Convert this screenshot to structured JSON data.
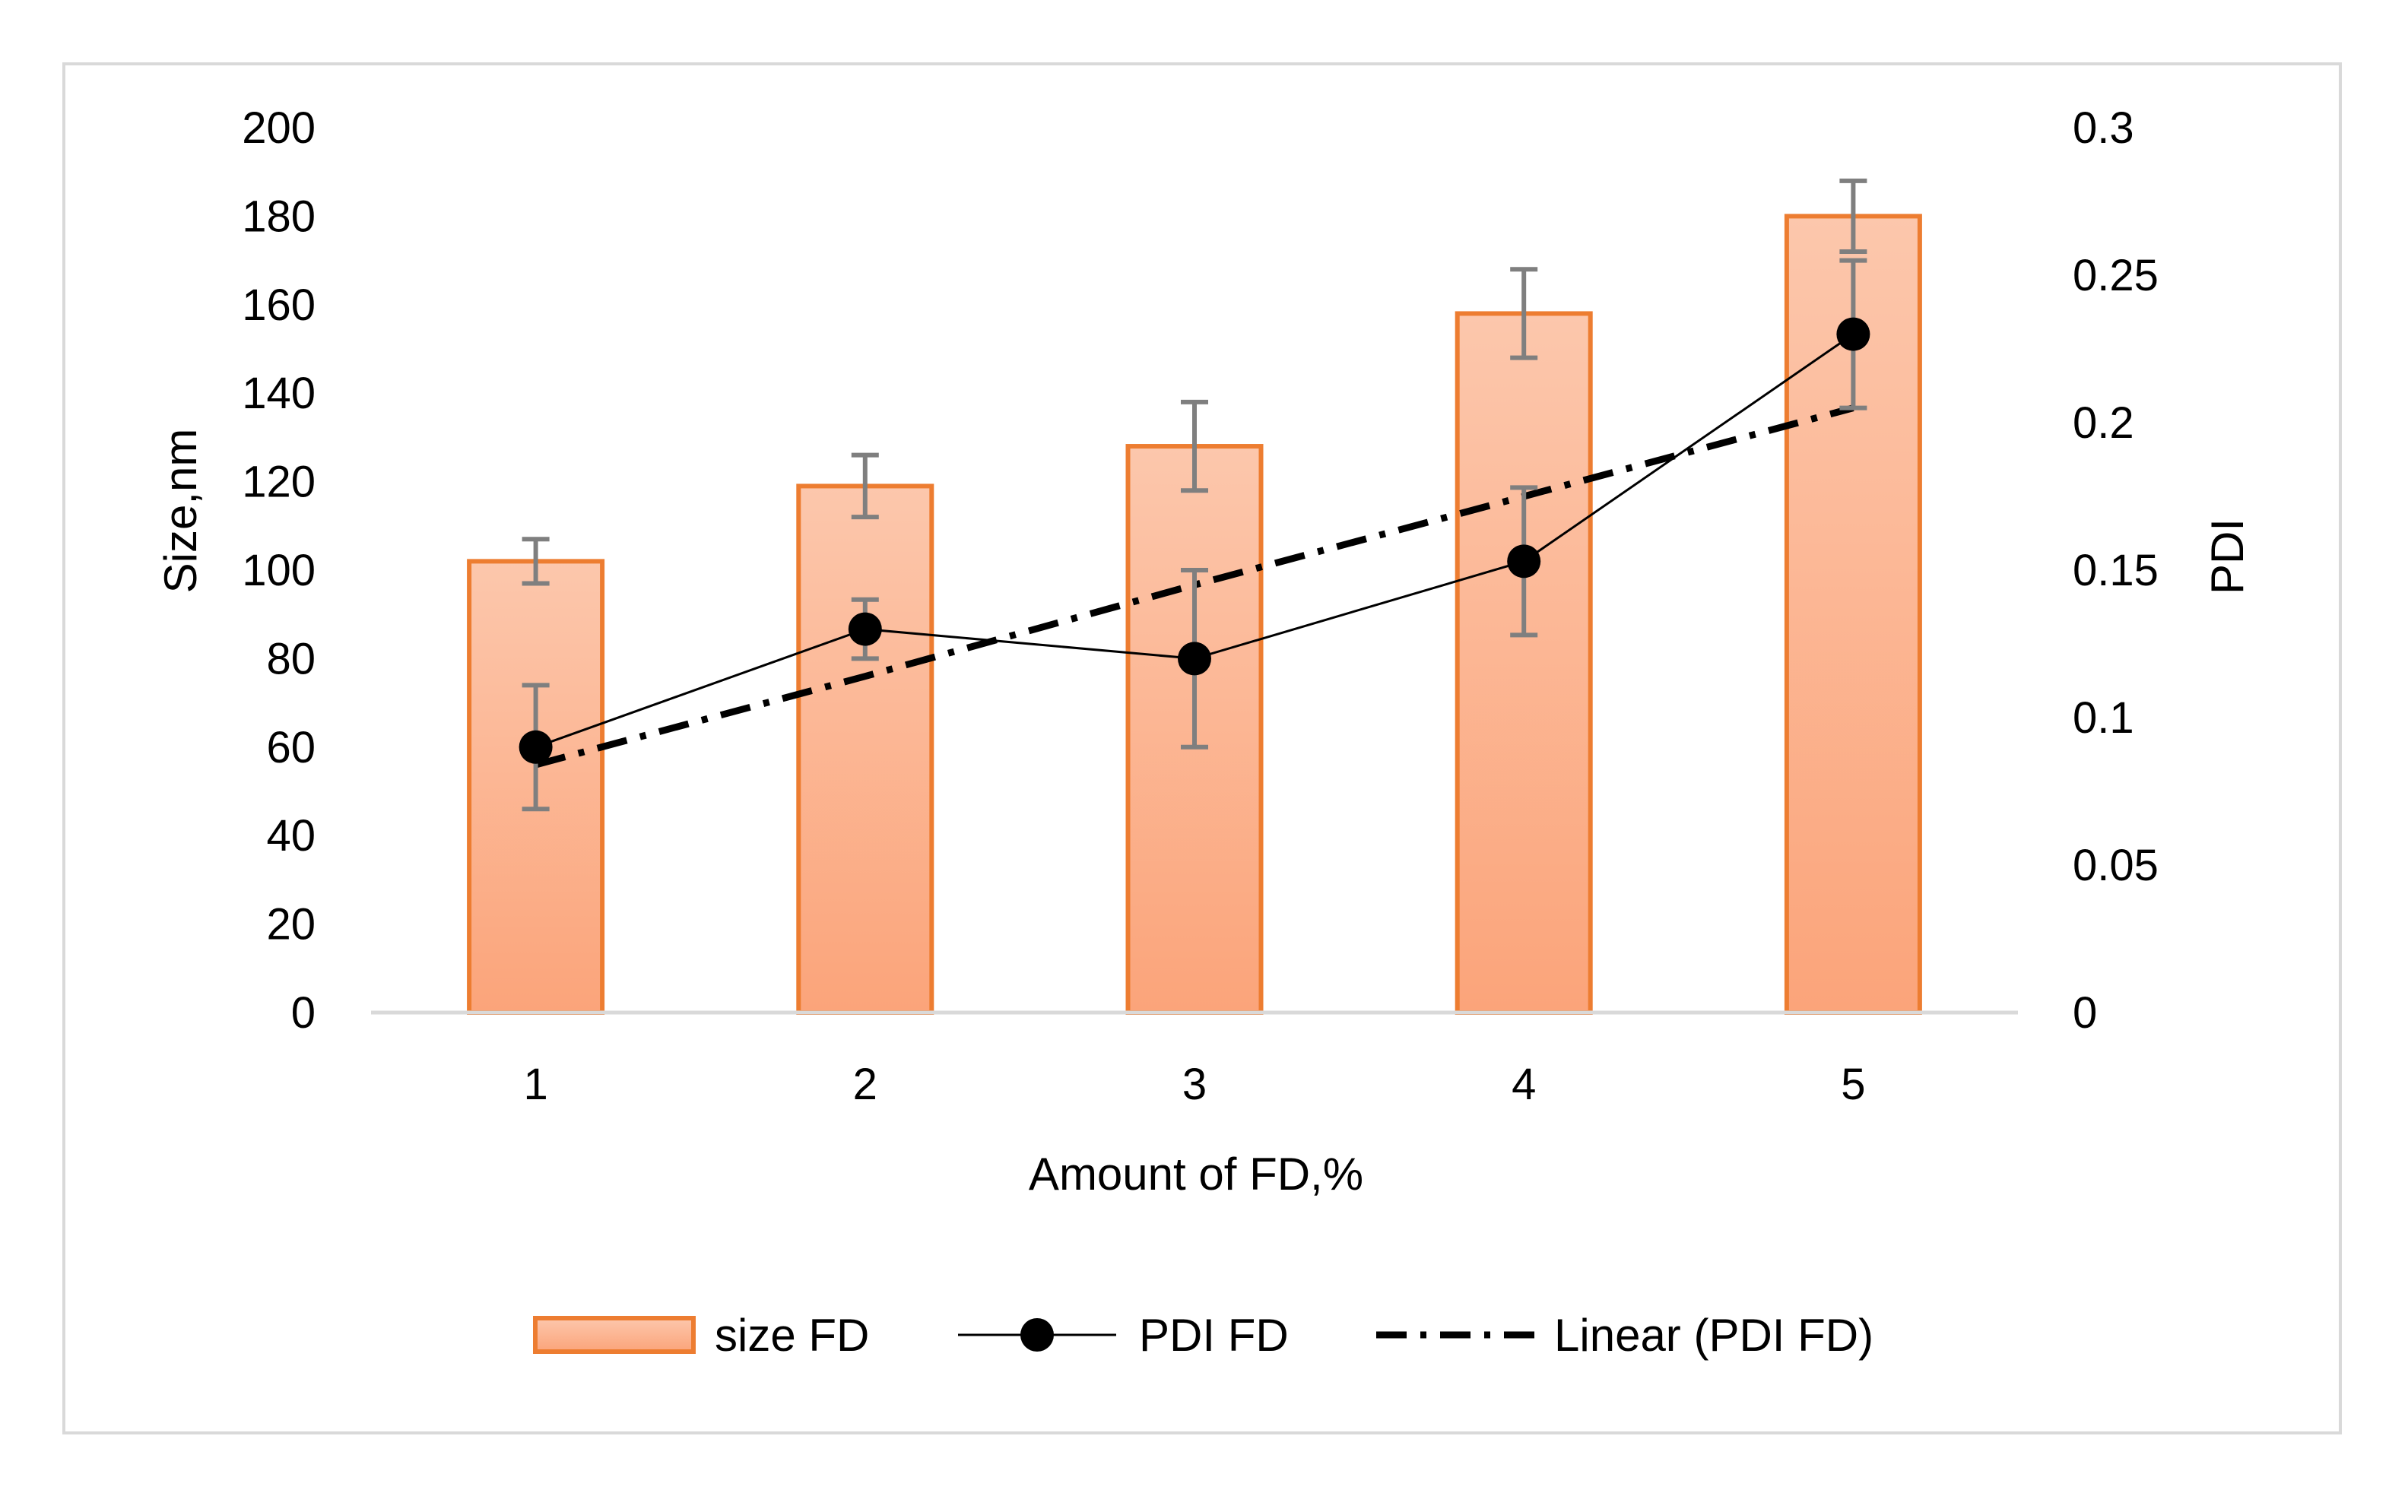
{
  "chart_data": {
    "type": "bar+line",
    "title": "",
    "categories": [
      "1",
      "2",
      "3",
      "4",
      "5"
    ],
    "xlabel": "Amount of FD,%",
    "ylabel_left": "Size,nm",
    "ylabel_right": "PDI",
    "ylim_left": [
      0,
      200
    ],
    "ylim_right": [
      0,
      0.3
    ],
    "yticks_left": [
      "0",
      "20",
      "40",
      "60",
      "80",
      "100",
      "120",
      "140",
      "160",
      "180",
      "200"
    ],
    "yticks_right": [
      "0",
      "0.05",
      "0.1",
      "0.15",
      "0.2",
      "0.25",
      "0.3"
    ],
    "grid": false,
    "legend_position": "bottom",
    "series": [
      {
        "name": "size FD",
        "type": "bar",
        "axis": "left",
        "values": [
          102,
          119,
          128,
          158,
          180
        ],
        "errors": [
          5,
          7,
          10,
          10,
          8
        ],
        "color": "#ED7D31",
        "fill": "#FBB591"
      },
      {
        "name": "PDI FD",
        "type": "line",
        "axis": "right",
        "values": [
          0.09,
          0.13,
          0.12,
          0.153,
          0.23
        ],
        "errors": [
          0.021,
          0.01,
          0.03,
          0.025,
          0.025
        ],
        "color": "#000000"
      },
      {
        "name": "Linear (PDI FD)",
        "type": "trendline",
        "axis": "right",
        "values": [
          0.084,
          0.114,
          0.145,
          0.175,
          0.205
        ],
        "color": "#000000",
        "style": "dash-dot"
      }
    ]
  }
}
